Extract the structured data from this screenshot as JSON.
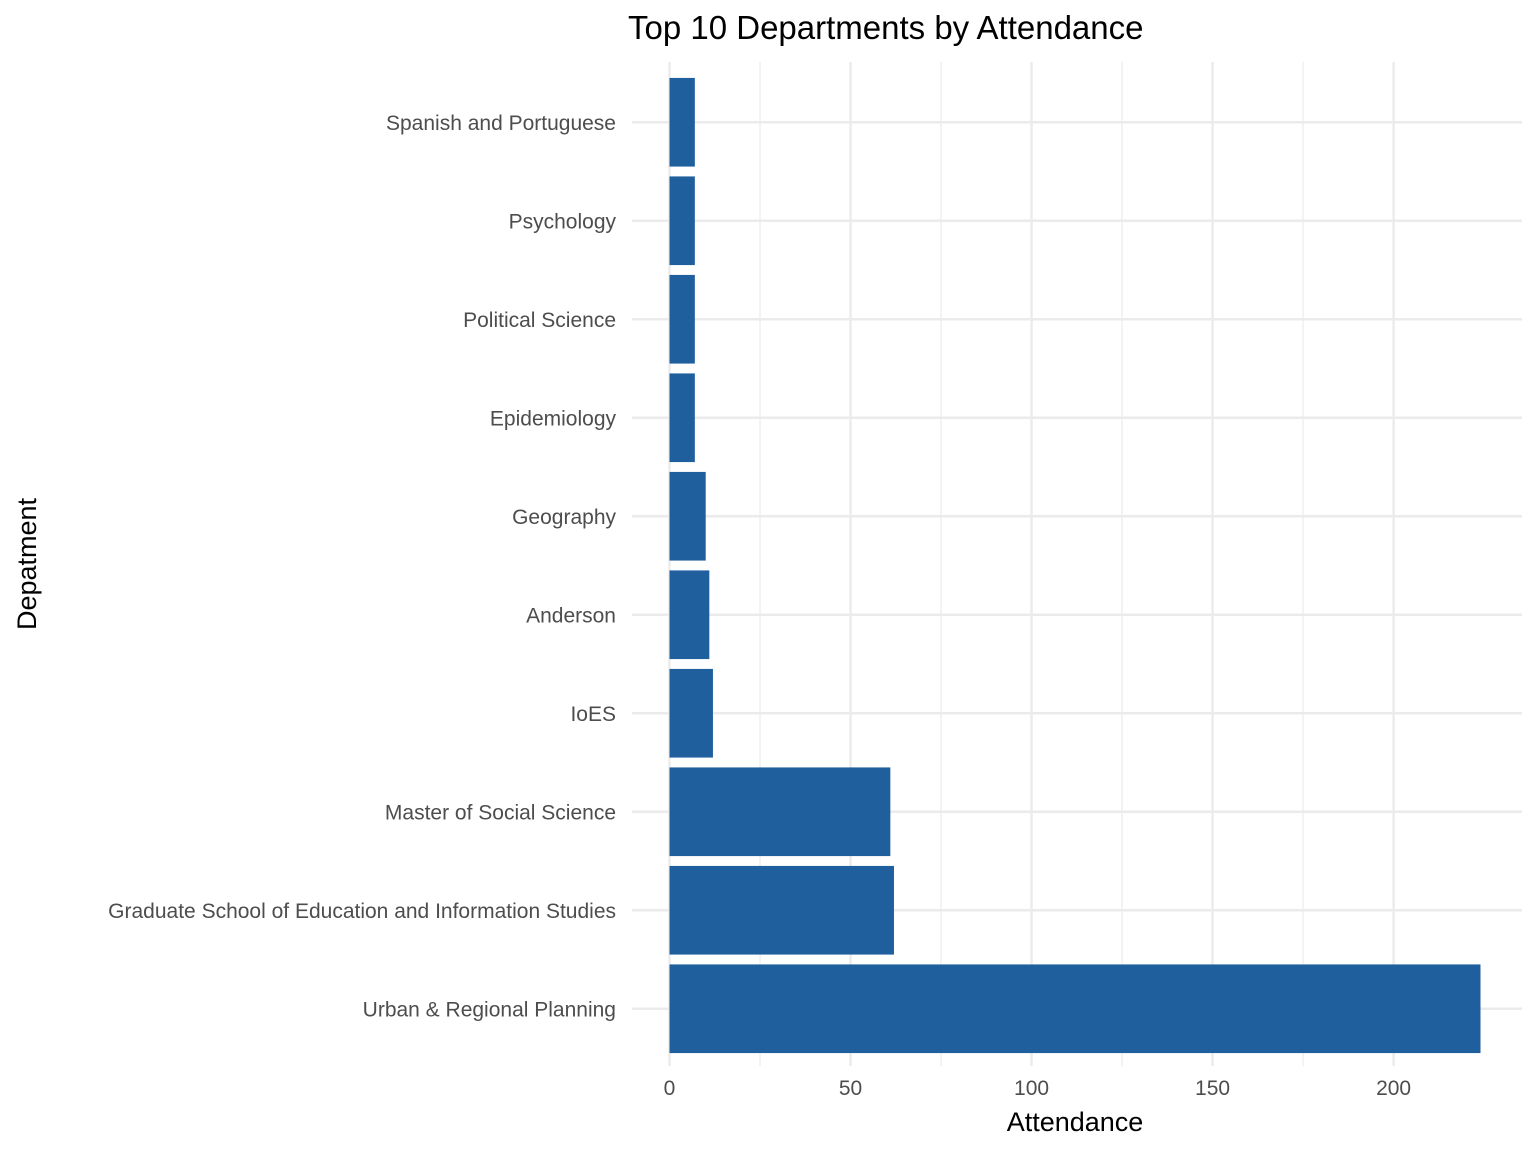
{
  "chart_data": {
    "type": "bar",
    "orientation": "horizontal",
    "title": "Top 10 Departments by Attendance",
    "xlabel": "Attendance",
    "ylabel": "Depatment",
    "categories": [
      "Urban & Regional Planning",
      "Graduate School of Education and Information Studies",
      "Master of Social Science",
      "IoES",
      "Anderson",
      "Geography",
      "Epidemiology",
      "Political Science",
      "Psychology",
      "Spanish and Portuguese"
    ],
    "values": [
      224,
      62,
      61,
      12,
      11,
      10,
      7,
      7,
      7,
      7
    ],
    "xlim": [
      0,
      224
    ],
    "xticks": [
      0,
      50,
      100,
      150,
      200
    ],
    "xtick_labels": [
      "0",
      "50",
      "100",
      "150",
      "200"
    ],
    "grid": true,
    "bar_color": "#1F5F9D",
    "grid_color": "#EBEBEB"
  }
}
